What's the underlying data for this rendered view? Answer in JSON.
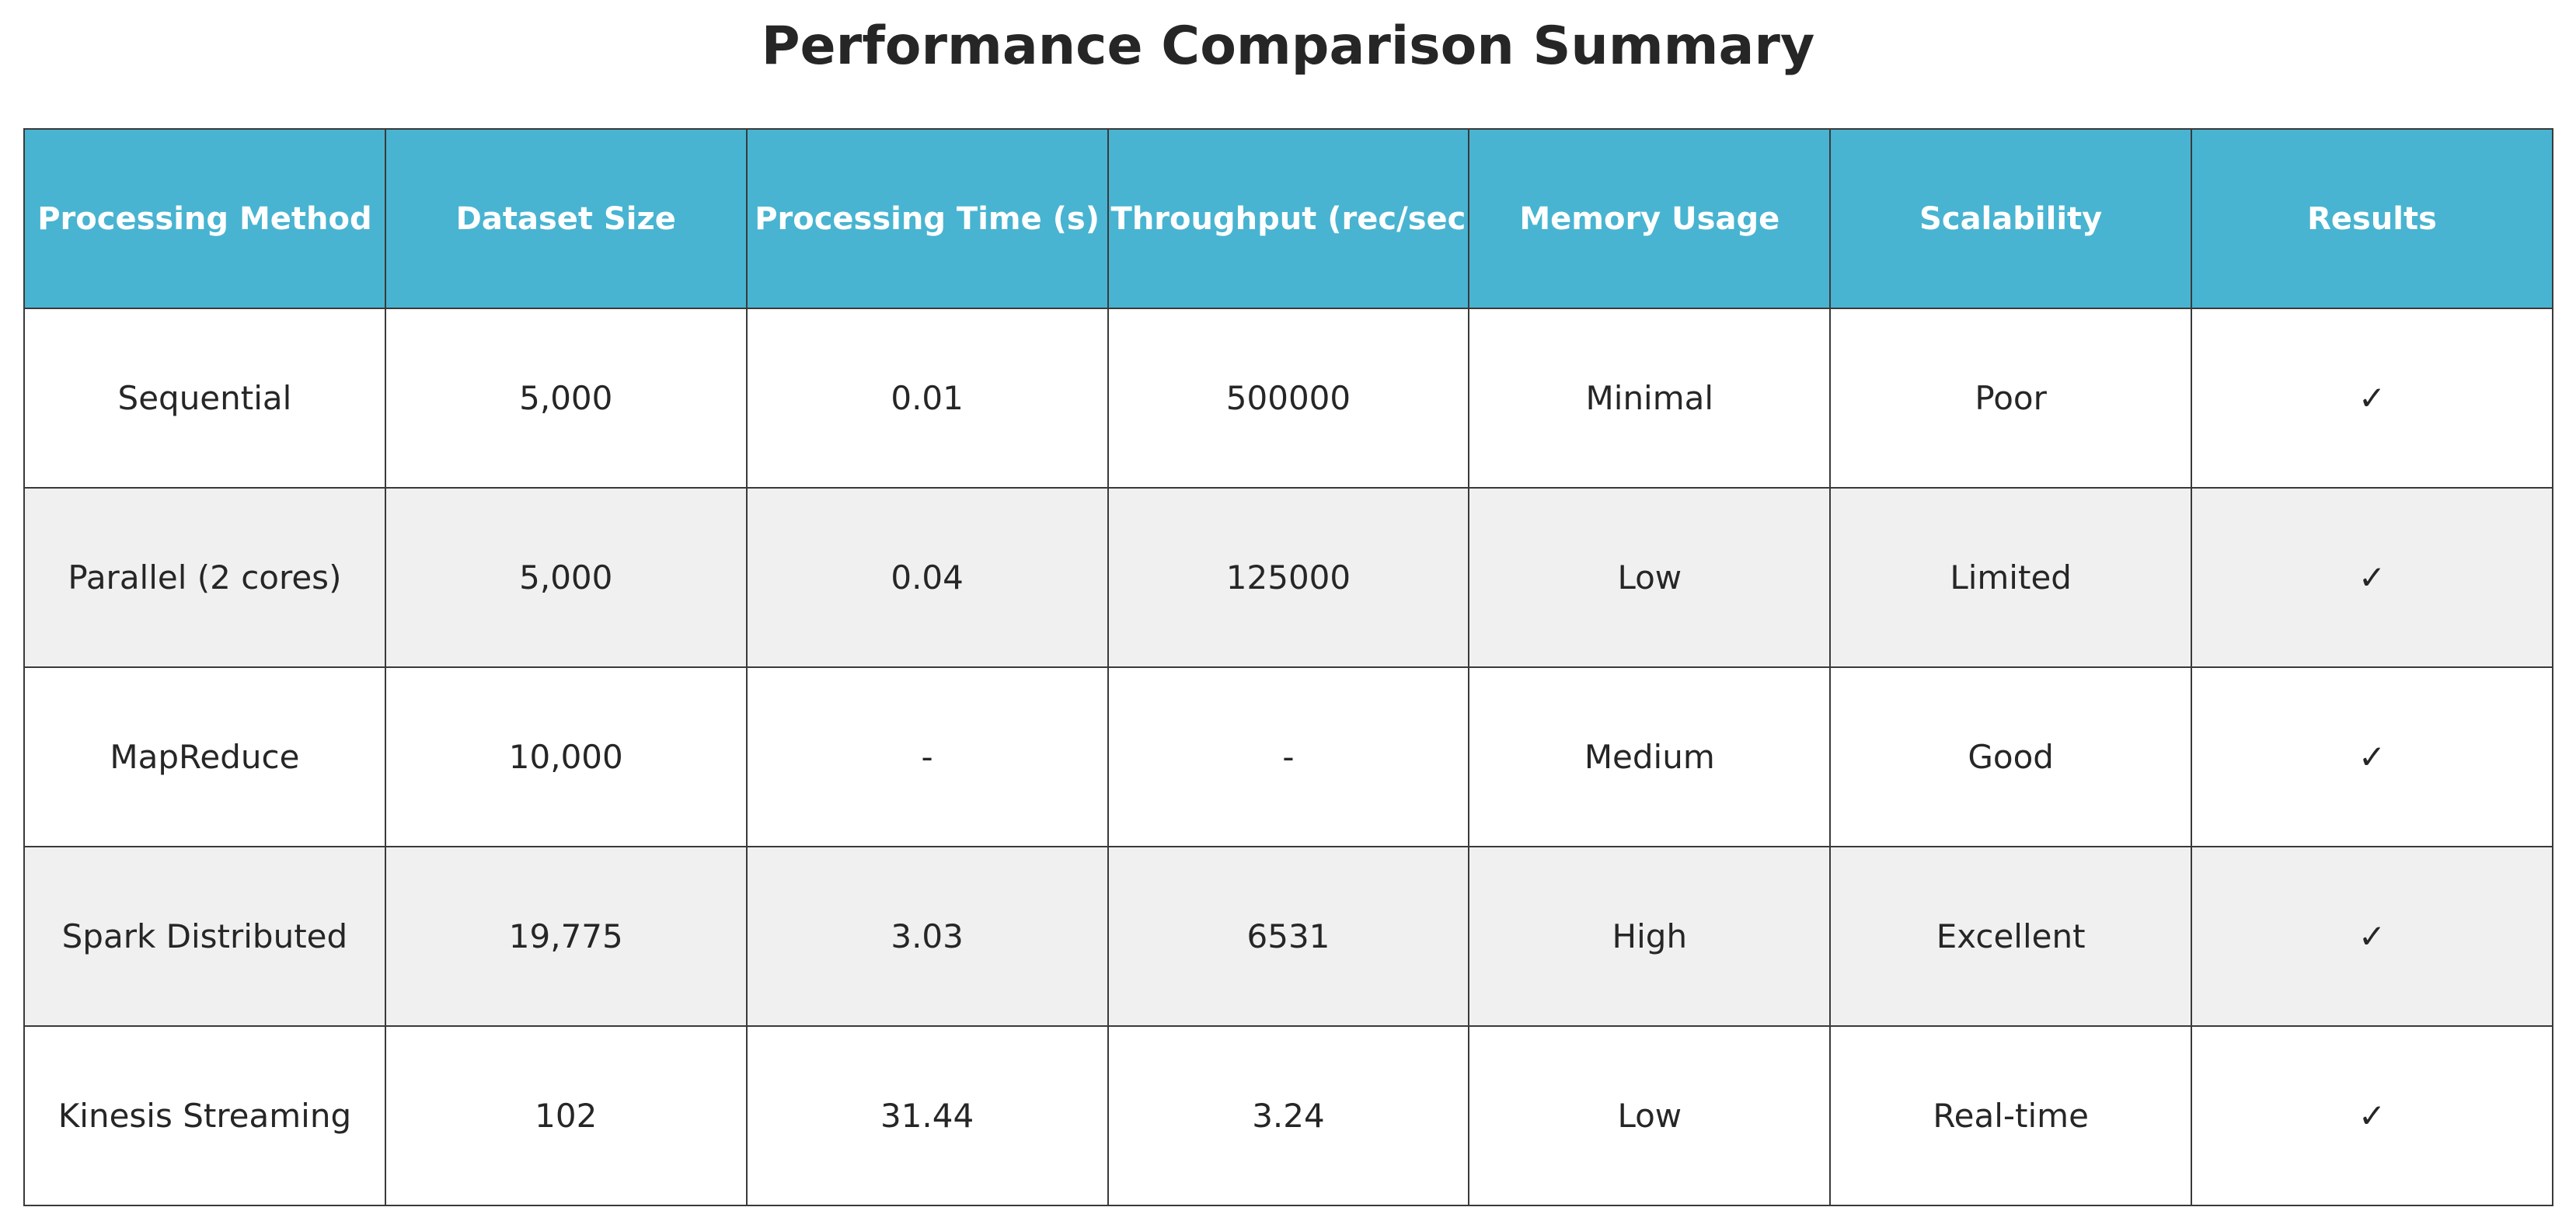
{
  "chart_data": {
    "type": "table",
    "title": "Performance Comparison Summary",
    "columns": [
      "Processing Method",
      "Dataset Size",
      "Processing Time (s)",
      "Throughput (rec/sec",
      "Memory Usage",
      "Scalability",
      "Results"
    ],
    "rows": [
      [
        "Sequential",
        "5,000",
        "0.01",
        "500000",
        "Minimal",
        "Poor",
        "✓"
      ],
      [
        "Parallel (2 cores)",
        "5,000",
        "0.04",
        "125000",
        "Low",
        "Limited",
        "✓"
      ],
      [
        "MapReduce",
        "10,000",
        "-",
        "-",
        "Medium",
        "Good",
        "✓"
      ],
      [
        "Spark Distributed",
        "19,775",
        "3.03",
        "6531",
        "High",
        "Excellent",
        "✓"
      ],
      [
        "Kinesis Streaming",
        "102",
        "31.44",
        "3.24",
        "Low",
        "Real-time",
        "✓"
      ]
    ]
  },
  "colors": {
    "header_background": "#48b4d1",
    "header_text": "#ffffff",
    "stripe_row": "#f0f0f0",
    "row": "#ffffff",
    "border": "#3a3a3a"
  }
}
